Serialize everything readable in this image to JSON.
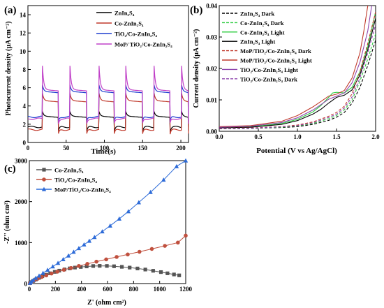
{
  "panels": [
    "(a)",
    "(b)",
    "(c)"
  ],
  "chart_data": [
    {
      "type": "line",
      "panel": "(a)",
      "xlabel": "Time(s)",
      "ylabel": "Photocurrent density (μA cm⁻²)",
      "xlim": [
        0,
        210
      ],
      "ylim": [
        0,
        15
      ],
      "xticks": [
        "0",
        "50",
        "100",
        "150",
        "200"
      ],
      "yticks": [
        "0",
        "2",
        "4",
        "6",
        "8",
        "10",
        "12",
        "14"
      ],
      "legend_position": "top-right",
      "light_on_intervals": [
        [
          19,
          40
        ],
        [
          55,
          77
        ],
        [
          93,
          113
        ],
        [
          128,
          150
        ],
        [
          165,
          186
        ],
        [
          201,
          210
        ]
      ],
      "series": [
        {
          "name": "ZnIn₂S₄",
          "color": "#000000",
          "dark": 1.7,
          "light": 2.9,
          "spike": 0.5
        },
        {
          "name": "Co-ZnIn₂S₄",
          "color": "#c0392b",
          "dark": 1.4,
          "light": 4.6,
          "spike": 0.8
        },
        {
          "name": "TiO₂/Co-ZnIn₂S₄",
          "color": "#1e3ecf",
          "dark": 2.8,
          "light": 5.6,
          "spike": 0.7
        },
        {
          "name": "MoP/ TiO₂/Co-ZnIn₂S₄",
          "color": "#c040c8",
          "dark": 2.6,
          "light": 5.8,
          "spike": 2.6
        }
      ]
    },
    {
      "type": "line",
      "panel": "(b)",
      "xlabel": "Potential (V vs Ag/AgCl)",
      "ylabel": "Current density (μA cm⁻²)",
      "xlim": [
        0.0,
        2.0
      ],
      "ylim": [
        0.0,
        0.04
      ],
      "xticks": [
        "0.0",
        "0.5",
        "1.0",
        "1.5",
        "2.0"
      ],
      "yticks": [
        "0.00",
        "0.01",
        "0.02",
        "0.03",
        "0.04"
      ],
      "legend_position": "top-left",
      "series": [
        {
          "name": "ZnIn₂S₄ Dark",
          "color": "#000000",
          "dashed": true,
          "x": [
            0.0,
            0.4,
            0.8,
            1.0,
            1.2,
            1.4,
            1.5,
            1.6,
            1.7,
            1.8,
            1.9,
            2.0
          ],
          "y": [
            0.0008,
            0.0009,
            0.0012,
            0.0015,
            0.0022,
            0.0035,
            0.0045,
            0.006,
            0.009,
            0.014,
            0.021,
            0.029
          ]
        },
        {
          "name": "Co-ZnIn₂S₄ Dark",
          "color": "#2ecc40",
          "dashed": true,
          "x": [
            0.0,
            0.4,
            0.8,
            1.0,
            1.2,
            1.4,
            1.5,
            1.6,
            1.7,
            1.8,
            1.9,
            2.0
          ],
          "y": [
            0.0009,
            0.001,
            0.0013,
            0.0017,
            0.0025,
            0.004,
            0.005,
            0.0068,
            0.01,
            0.016,
            0.023,
            0.031
          ]
        },
        {
          "name": "Co-ZnIn₂S₄ Light",
          "color": "#2ecc40",
          "dashed": false,
          "x": [
            0.0,
            0.4,
            0.8,
            1.0,
            1.2,
            1.3,
            1.4,
            1.45,
            1.5,
            1.6,
            1.7,
            1.8,
            1.9,
            2.0
          ],
          "y": [
            0.0012,
            0.0014,
            0.0025,
            0.0038,
            0.0062,
            0.0082,
            0.0108,
            0.0122,
            0.0124,
            0.0122,
            0.014,
            0.019,
            0.027,
            0.038
          ]
        },
        {
          "name": "ZnIn₂S₄ Light",
          "color": "#000000",
          "dashed": false,
          "x": [
            0.0,
            0.4,
            0.8,
            1.0,
            1.2,
            1.3,
            1.4,
            1.5,
            1.6,
            1.7,
            1.8,
            1.9,
            2.0
          ],
          "y": [
            0.0011,
            0.0013,
            0.0022,
            0.0034,
            0.0055,
            0.007,
            0.009,
            0.0108,
            0.0115,
            0.0132,
            0.018,
            0.026,
            0.036
          ]
        },
        {
          "name": "MoP/TiO₂/Co-ZnIn₂S₄ Dark",
          "color": "#c0392b",
          "dashed": true,
          "x": [
            0.0,
            0.4,
            0.8,
            1.0,
            1.2,
            1.4,
            1.5,
            1.6,
            1.7,
            1.8,
            1.9,
            2.0
          ],
          "y": [
            0.001,
            0.0011,
            0.0015,
            0.002,
            0.003,
            0.0048,
            0.006,
            0.008,
            0.012,
            0.019,
            0.028,
            0.038
          ]
        },
        {
          "name": "MoP/TiO₂/Co-ZnIn₂S₄ Light",
          "color": "#c0392b",
          "dashed": false,
          "x": [
            0.0,
            0.4,
            0.8,
            1.0,
            1.2,
            1.3,
            1.4,
            1.5,
            1.6,
            1.7,
            1.8,
            1.85,
            1.9
          ],
          "y": [
            0.0015,
            0.0018,
            0.0032,
            0.005,
            0.0078,
            0.0095,
            0.0112,
            0.0118,
            0.013,
            0.017,
            0.025,
            0.032,
            0.04
          ]
        },
        {
          "name": "TiO₂/Co-ZnIn₂S₄ Light",
          "color": "#8e44ad",
          "dashed": false,
          "x": [
            0.0,
            0.4,
            0.8,
            1.0,
            1.2,
            1.3,
            1.4,
            1.5,
            1.6,
            1.7,
            1.8,
            1.9,
            1.95
          ],
          "y": [
            0.0013,
            0.0016,
            0.0028,
            0.0043,
            0.0068,
            0.0085,
            0.0102,
            0.0112,
            0.0122,
            0.0155,
            0.022,
            0.032,
            0.04
          ]
        },
        {
          "name": "TiO₂/Co-ZnIn₂S₄ Dark",
          "color": "#8e44ad",
          "dashed": true,
          "x": [
            0.0,
            0.4,
            0.8,
            1.0,
            1.2,
            1.4,
            1.5,
            1.6,
            1.7,
            1.8,
            1.9,
            2.0
          ],
          "y": [
            0.0009,
            0.001,
            0.0014,
            0.0018,
            0.0027,
            0.0044,
            0.0055,
            0.0074,
            0.011,
            0.017,
            0.025,
            0.034
          ]
        }
      ]
    },
    {
      "type": "scatter",
      "panel": "(c)",
      "xlabel": "Z' (ohm cm²)",
      "ylabel": "-Z'' (ohm cm²)",
      "xlim": [
        0,
        1200
      ],
      "ylim": [
        0,
        3000
      ],
      "xticks": [
        "0",
        "200",
        "400",
        "600",
        "800",
        "1000",
        "1200"
      ],
      "yticks": [
        "0",
        "1000",
        "2000",
        "3000"
      ],
      "legend_position": "top-left",
      "series": [
        {
          "name": "Co-ZnIn₂S₄",
          "color": "#555555",
          "marker": "square",
          "x": [
            5,
            15,
            30,
            50,
            75,
            100,
            130,
            160,
            195,
            230,
            270,
            310,
            350,
            395,
            440,
            490,
            540,
            595,
            650,
            710,
            770,
            830,
            890,
            950,
            1010,
            1060,
            1110,
            1150
          ],
          "y": [
            10,
            35,
            65,
            100,
            140,
            180,
            215,
            250,
            285,
            315,
            345,
            370,
            390,
            405,
            418,
            428,
            432,
            430,
            422,
            408,
            390,
            368,
            342,
            312,
            280,
            250,
            222,
            200
          ]
        },
        {
          "name": "TiO₂/Co-ZnIn₂S₄",
          "color": "#c0503e",
          "marker": "circle",
          "x": [
            5,
            20,
            40,
            65,
            95,
            130,
            170,
            215,
            265,
            320,
            380,
            445,
            515,
            590,
            670,
            755,
            845,
            940,
            1040,
            1140,
            1200
          ],
          "y": [
            10,
            40,
            80,
            120,
            160,
            200,
            245,
            290,
            335,
            380,
            430,
            480,
            535,
            590,
            650,
            710,
            775,
            845,
            920,
            1000,
            1170
          ]
        },
        {
          "name": "MoP/TiO₂/Co-ZnIn₂S₄",
          "color": "#2d6bd8",
          "marker": "triangle",
          "x": [
            5,
            15,
            30,
            50,
            75,
            105,
            140,
            180,
            220,
            260,
            300,
            340,
            380,
            420,
            460,
            500,
            560,
            620,
            690,
            760,
            840,
            930,
            1030,
            1130,
            1200
          ],
          "y": [
            15,
            45,
            85,
            135,
            190,
            255,
            330,
            415,
            500,
            590,
            680,
            770,
            860,
            950,
            1040,
            1130,
            1270,
            1410,
            1580,
            1760,
            1980,
            2230,
            2530,
            2860,
            3000
          ]
        }
      ]
    }
  ]
}
